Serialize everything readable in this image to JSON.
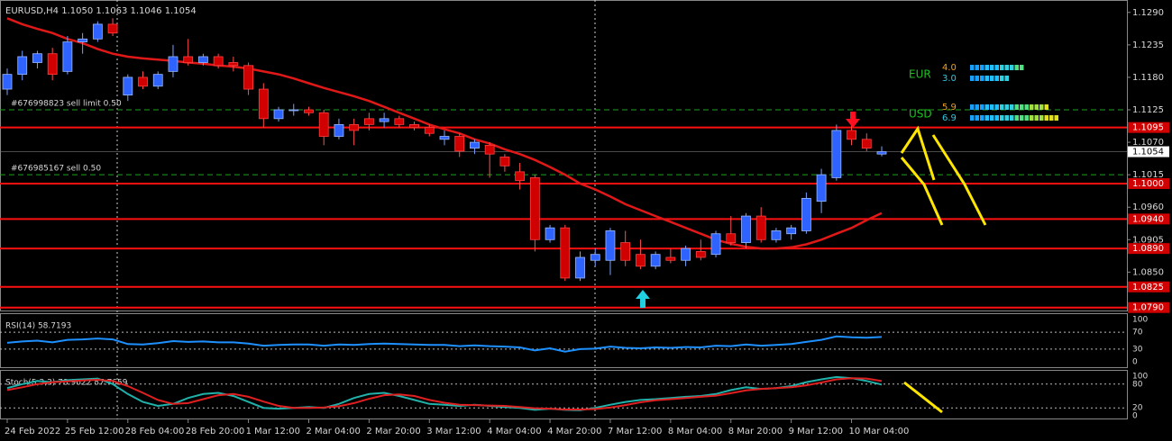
{
  "chart_data": {
    "type": "candlestick",
    "title": "EURUSD,H4  1.1050 1.1063 1.1046 1.1054",
    "up_color": "#2e63ff",
    "down_color": "#d00000",
    "ylim": [
      1.0785,
      1.1311
    ],
    "yticks": [
      {
        "value": 1.129,
        "label": "1.1290"
      },
      {
        "value": 1.1235,
        "label": "1.1235"
      },
      {
        "value": 1.118,
        "label": "1.1180"
      },
      {
        "value": 1.1125,
        "label": "1.1125"
      },
      {
        "value": 1.107,
        "label": "1.1070"
      },
      {
        "value": 1.1015,
        "label": "1.1015"
      },
      {
        "value": 1.096,
        "label": "1.0960"
      },
      {
        "value": 1.0905,
        "label": "1.0905"
      },
      {
        "value": 1.085,
        "label": "1.0850"
      }
    ],
    "current_price": {
      "value": 1.1054,
      "label": "1.1054"
    },
    "levels": [
      {
        "value": 1.1095,
        "label": "1.1095"
      },
      {
        "value": 1.1,
        "label": "1.1000"
      },
      {
        "value": 1.094,
        "label": "1.0940"
      },
      {
        "value": 1.089,
        "label": "1.0890"
      },
      {
        "value": 1.0825,
        "label": "1.0825"
      },
      {
        "value": 1.079,
        "label": "1.0790"
      }
    ],
    "orders": [
      {
        "label": "#676998823 sell limit 0.50",
        "price": 1.1125
      },
      {
        "label": "#676985167 sell 0.50",
        "price": 1.1015
      }
    ],
    "x_labels": [
      "24 Feb 2022",
      "25 Feb 12:00",
      "28 Feb 04:00",
      "28 Feb 20:00",
      "1 Mar 12:00",
      "2 Mar 04:00",
      "2 Mar 20:00",
      "3 Mar 12:00",
      "4 Mar 04:00",
      "4 Mar 20:00",
      "7 Mar 12:00",
      "8 Mar 04:00",
      "8 Mar 20:00",
      "9 Mar 12:00",
      "10 Mar 04:00"
    ],
    "candles": [
      [
        1.116,
        1.1195,
        1.115,
        1.1185
      ],
      [
        1.1185,
        1.1225,
        1.1175,
        1.1215
      ],
      [
        1.1205,
        1.1225,
        1.1195,
        1.122
      ],
      [
        1.122,
        1.123,
        1.1175,
        1.1185
      ],
      [
        1.119,
        1.125,
        1.1185,
        1.124
      ],
      [
        1.124,
        1.1255,
        1.122,
        1.1245
      ],
      [
        1.1245,
        1.1275,
        1.124,
        1.127
      ],
      [
        1.127,
        1.128,
        1.125,
        1.1255
      ],
      [
        1.115,
        1.1185,
        1.114,
        1.118
      ],
      [
        1.118,
        1.119,
        1.116,
        1.1165
      ],
      [
        1.1165,
        1.119,
        1.116,
        1.1185
      ],
      [
        1.119,
        1.1235,
        1.118,
        1.1215
      ],
      [
        1.1215,
        1.1245,
        1.12,
        1.1205
      ],
      [
        1.1205,
        1.122,
        1.12,
        1.1215
      ],
      [
        1.1215,
        1.122,
        1.1195,
        1.12
      ],
      [
        1.1205,
        1.1215,
        1.119,
        1.12
      ],
      [
        1.12,
        1.1205,
        1.115,
        1.116
      ],
      [
        1.116,
        1.117,
        1.1095,
        1.111
      ],
      [
        1.111,
        1.113,
        1.1105,
        1.1125
      ],
      [
        1.1125,
        1.1135,
        1.1115,
        1.1125
      ],
      [
        1.1125,
        1.113,
        1.1115,
        1.112
      ],
      [
        1.112,
        1.1125,
        1.1065,
        1.108
      ],
      [
        1.108,
        1.111,
        1.1075,
        1.11
      ],
      [
        1.11,
        1.111,
        1.1065,
        1.109
      ],
      [
        1.111,
        1.112,
        1.109,
        1.11
      ],
      [
        1.1105,
        1.112,
        1.1095,
        1.111
      ],
      [
        1.111,
        1.1115,
        1.1095,
        1.11
      ],
      [
        1.11,
        1.1105,
        1.109,
        1.1095
      ],
      [
        1.1095,
        1.11,
        1.108,
        1.1085
      ],
      [
        1.1075,
        1.109,
        1.1065,
        1.108
      ],
      [
        1.108,
        1.1085,
        1.1045,
        1.1055
      ],
      [
        1.106,
        1.1075,
        1.105,
        1.107
      ],
      [
        1.1065,
        1.107,
        1.101,
        1.105
      ],
      [
        1.1045,
        1.105,
        1.102,
        1.103
      ],
      [
        1.102,
        1.1035,
        1.099,
        1.1005
      ],
      [
        1.101,
        1.1015,
        1.0885,
        1.0905
      ],
      [
        1.0905,
        1.093,
        1.09,
        1.0925
      ],
      [
        1.0925,
        1.093,
        1.0835,
        1.084
      ],
      [
        1.084,
        1.0885,
        1.0835,
        1.0875
      ],
      [
        1.087,
        1.089,
        1.086,
        1.088
      ],
      [
        1.087,
        1.0925,
        1.0845,
        1.092
      ],
      [
        1.09,
        1.092,
        1.086,
        1.087
      ],
      [
        1.088,
        1.0905,
        1.0855,
        1.086
      ],
      [
        1.086,
        1.0885,
        1.0855,
        1.088
      ],
      [
        1.0875,
        1.089,
        1.0865,
        1.087
      ],
      [
        1.087,
        1.0895,
        1.086,
        1.089
      ],
      [
        1.0885,
        1.0905,
        1.087,
        1.0875
      ],
      [
        1.088,
        1.092,
        1.0875,
        1.0915
      ],
      [
        1.0915,
        1.0945,
        1.0895,
        1.09
      ],
      [
        1.09,
        1.095,
        1.089,
        1.0945
      ],
      [
        1.0945,
        1.096,
        1.09,
        1.0905
      ],
      [
        1.0905,
        1.0925,
        1.09,
        1.092
      ],
      [
        1.0915,
        1.093,
        1.0905,
        1.0925
      ],
      [
        1.092,
        1.0985,
        1.0915,
        1.0975
      ],
      [
        1.097,
        1.1025,
        1.095,
        1.1015
      ],
      [
        1.101,
        1.11,
        1.1005,
        1.109
      ],
      [
        1.109,
        1.11,
        1.1065,
        1.1075
      ],
      [
        1.1075,
        1.1085,
        1.1055,
        1.106
      ],
      [
        1.105,
        1.1063,
        1.1046,
        1.1054
      ]
    ],
    "ma": {
      "color": "#e01818",
      "values": [
        1.128,
        1.127,
        1.1262,
        1.1255,
        1.1245,
        1.1238,
        1.1228,
        1.122,
        1.1215,
        1.1212,
        1.121,
        1.1208,
        1.1205,
        1.1203,
        1.12,
        1.1198,
        1.1195,
        1.119,
        1.1185,
        1.1178,
        1.117,
        1.1162,
        1.1155,
        1.1148,
        1.114,
        1.113,
        1.112,
        1.111,
        1.11,
        1.1092,
        1.1085,
        1.1075,
        1.1068,
        1.1058,
        1.105,
        1.104,
        1.1028,
        1.1015,
        1.1,
        1.099,
        1.0978,
        1.0965,
        1.0955,
        1.0945,
        1.0935,
        1.0925,
        1.0915,
        1.0905,
        1.0898,
        1.0893,
        1.089,
        1.089,
        1.0892,
        1.0897,
        1.0905,
        1.0915,
        1.0925,
        1.0938,
        1.095
      ]
    },
    "rsi": {
      "title": "RSI(14) 58.7193",
      "ylim": [
        0,
        100
      ],
      "yticks": [
        100,
        70,
        30,
        0
      ],
      "color": "#1e90ff",
      "values": [
        45,
        48,
        50,
        46,
        52,
        53,
        55,
        53,
        42,
        41,
        44,
        49,
        47,
        48,
        46,
        46,
        43,
        38,
        40,
        41,
        41,
        38,
        41,
        40,
        42,
        43,
        42,
        41,
        40,
        40,
        37,
        39,
        37,
        36,
        34,
        27,
        32,
        24,
        30,
        31,
        36,
        33,
        32,
        34,
        33,
        35,
        34,
        38,
        37,
        41,
        38,
        40,
        42,
        47,
        52,
        60,
        58,
        57,
        58.7193
      ]
    },
    "stoch": {
      "title": "Stoch(5,3,3) 78.9622 87.7659",
      "ylim": [
        0,
        100
      ],
      "yticks": [
        100,
        80,
        20,
        0
      ],
      "series": [
        {
          "color": "#20b2aa",
          "values": [
            70,
            80,
            88,
            85,
            90,
            92,
            94,
            80,
            55,
            35,
            25,
            30,
            45,
            55,
            58,
            50,
            35,
            20,
            18,
            20,
            22,
            20,
            30,
            45,
            55,
            58,
            50,
            40,
            30,
            28,
            25,
            28,
            25,
            22,
            20,
            15,
            18,
            15,
            14,
            20,
            28,
            35,
            40,
            42,
            45,
            48,
            50,
            55,
            65,
            72,
            68,
            70,
            75,
            85,
            92,
            98,
            95,
            88,
            78.9622
          ]
        },
        {
          "color": "#e02020",
          "values": [
            65,
            72,
            80,
            85,
            87,
            89,
            91,
            88,
            75,
            58,
            40,
            30,
            32,
            42,
            52,
            55,
            48,
            36,
            25,
            20,
            20,
            21,
            24,
            32,
            43,
            52,
            54,
            50,
            40,
            33,
            28,
            27,
            26,
            25,
            22,
            19,
            18,
            16,
            16,
            17,
            21,
            27,
            34,
            39,
            42,
            45,
            48,
            51,
            57,
            64,
            68,
            70,
            72,
            77,
            84,
            92,
            95,
            94,
            87.7659
          ]
        }
      ]
    },
    "strength": [
      {
        "name": "EUR",
        "values": [
          4.0,
          3.0
        ],
        "value_labels": [
          "4.0",
          "3.0"
        ]
      },
      {
        "name": "USD",
        "values": [
          5.9,
          6.9
        ],
        "value_labels": [
          "5.9",
          "6.9"
        ]
      }
    ]
  }
}
